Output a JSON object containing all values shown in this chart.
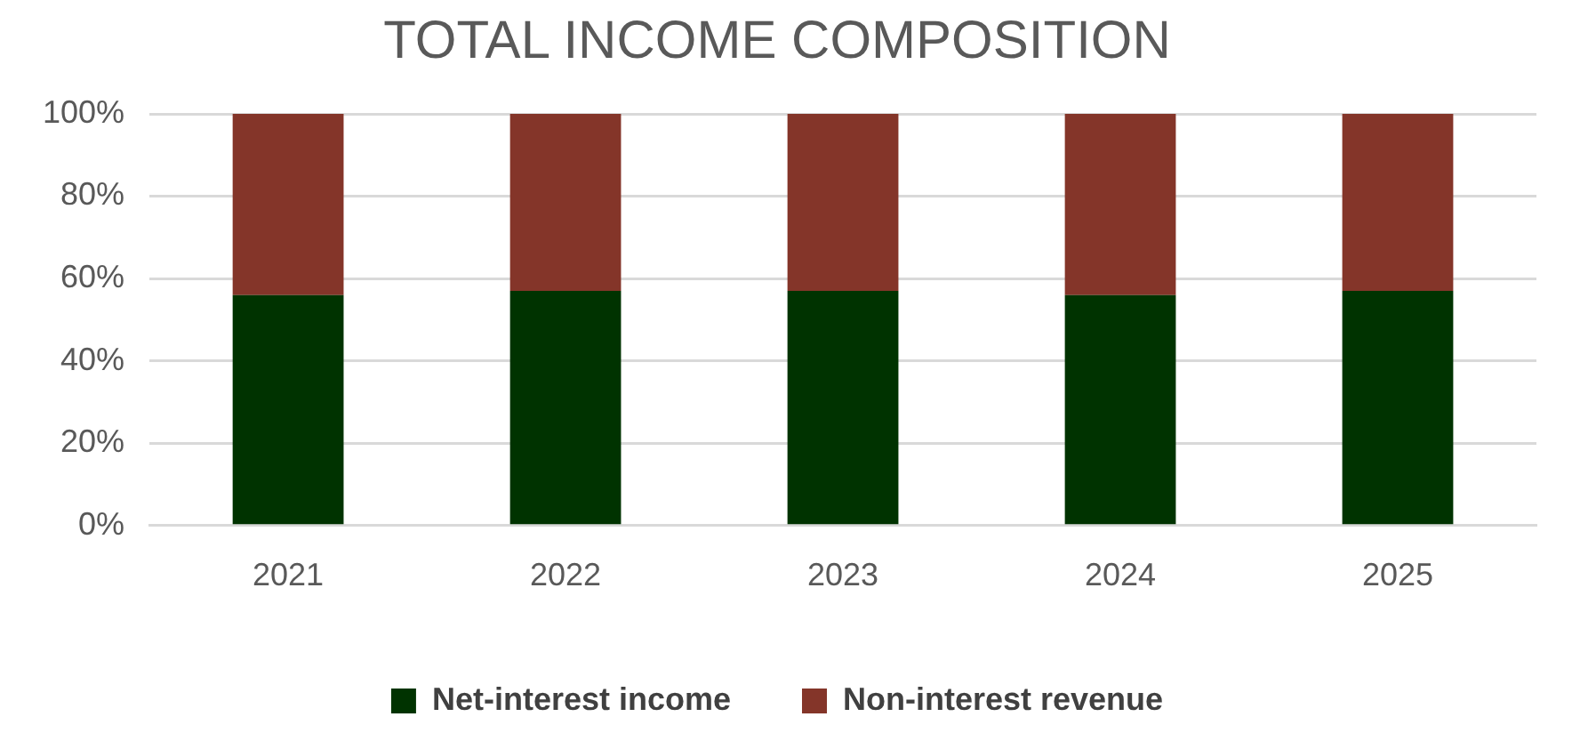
{
  "chart_data": {
    "type": "bar",
    "title": "TOTAL INCOME COMPOSITION",
    "stacked": true,
    "categories": [
      "2021",
      "2022",
      "2023",
      "2024",
      "2025"
    ],
    "series": [
      {
        "name": "Net-interest income",
        "color": "#003300",
        "values": [
          56,
          57,
          57,
          56,
          57
        ]
      },
      {
        "name": "Non-interest revenue",
        "color": "#843529",
        "values": [
          44,
          43,
          43,
          44,
          43
        ]
      }
    ],
    "ylim": [
      0,
      100
    ],
    "yticks": [
      {
        "value": 0,
        "label": "0%"
      },
      {
        "value": 20,
        "label": "20%"
      },
      {
        "value": 40,
        "label": "40%"
      },
      {
        "value": 60,
        "label": "60%"
      },
      {
        "value": 80,
        "label": "80%"
      },
      {
        "value": 100,
        "label": "100%"
      }
    ],
    "grid": "y",
    "legend": "bottom"
  }
}
